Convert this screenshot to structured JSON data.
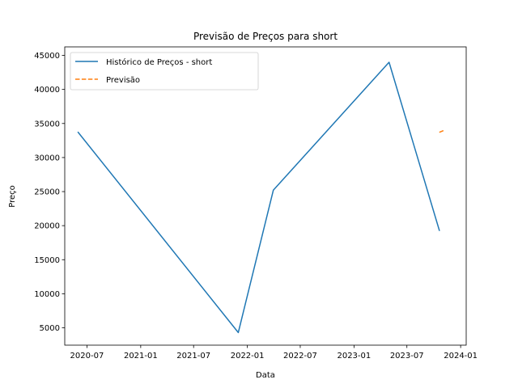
{
  "chart_data": {
    "type": "line",
    "title": "Previsão de Preços para short",
    "xlabel": "Data",
    "ylabel": "Preço",
    "xlim": [
      "2020-04-16",
      "2024-01-20"
    ],
    "ylim": [
      2450,
      46250
    ],
    "xticks": [
      "2020-07-01",
      "2021-01-01",
      "2021-07-01",
      "2022-01-01",
      "2022-07-01",
      "2023-01-01",
      "2023-07-01",
      "2024-01-01"
    ],
    "xtick_labels": [
      "2020-07",
      "2021-01",
      "2021-07",
      "2022-01",
      "2022-07",
      "2023-01",
      "2023-07",
      "2024-01"
    ],
    "yticks": [
      5000,
      10000,
      15000,
      20000,
      25000,
      30000,
      35000,
      40000,
      45000
    ],
    "ytick_labels": [
      "5000",
      "10000",
      "15000",
      "20000",
      "25000",
      "30000",
      "35000",
      "40000",
      "45000"
    ],
    "grid": false,
    "legend": "top-left",
    "series": [
      {
        "name": "Histórico de Preços - short",
        "color": "#1f77b4",
        "style": "solid",
        "x": [
          "2020-06-01",
          "2021-12-01",
          "2022-03-31",
          "2023-05-01",
          "2023-10-20"
        ],
        "y": [
          33700,
          4300,
          25200,
          44000,
          19300
        ]
      },
      {
        "name": "Previsão",
        "color": "#ff7f0e",
        "style": "dashed",
        "x": [
          "2023-10-20",
          "2023-11-05"
        ],
        "y": [
          33700,
          34000
        ]
      }
    ]
  }
}
